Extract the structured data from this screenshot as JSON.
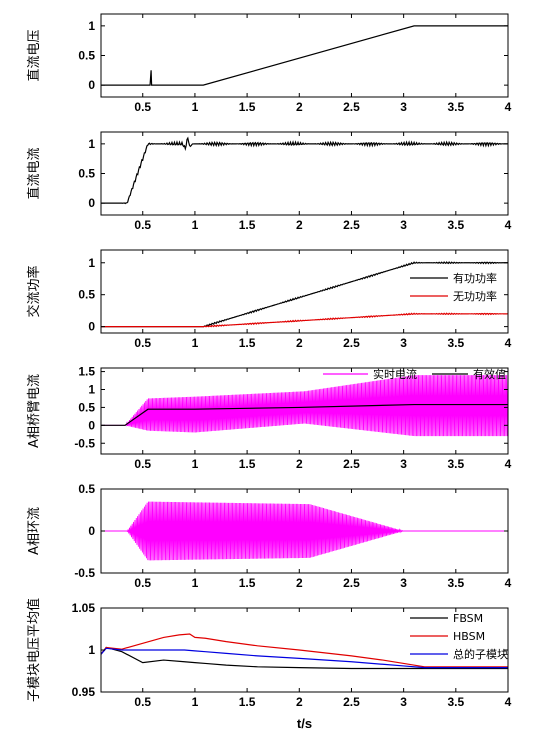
{
  "chart_data": [
    {
      "type": "line",
      "ylabel": "直流电压",
      "xlim": [
        0.1,
        4
      ],
      "ylim": [
        -0.2,
        1.2
      ],
      "xticks": [
        "0.5",
        "1",
        "1.5",
        "2",
        "2.5",
        "3",
        "3.5",
        "4"
      ],
      "yticks": [
        "0",
        "0.5",
        "1"
      ],
      "series": [
        {
          "color": "#000000",
          "x": [
            0.1,
            0.57,
            0.58,
            0.585,
            0.59,
            1.08,
            3.1,
            4.0
          ],
          "y": [
            0,
            0,
            0.25,
            0,
            0,
            0,
            1,
            1
          ]
        }
      ]
    },
    {
      "type": "line",
      "ylabel": "直流电流",
      "xlim": [
        0.1,
        4
      ],
      "ylim": [
        -0.2,
        1.2
      ],
      "xticks": [
        "0.5",
        "1",
        "1.5",
        "2",
        "2.5",
        "3",
        "3.5",
        "4"
      ],
      "yticks": [
        "0",
        "0.5",
        "1"
      ],
      "series": [
        {
          "color": "#000000",
          "x": [
            0.1,
            0.35,
            0.55,
            0.88,
            0.91,
            0.93,
            0.95,
            0.98,
            4.0
          ],
          "y": [
            0,
            0,
            1,
            1,
            0.92,
            1.12,
            0.95,
            1.0,
            1.0
          ],
          "ripple": 0.03
        }
      ]
    },
    {
      "type": "line",
      "ylabel": "交流功率",
      "xlim": [
        0.1,
        4
      ],
      "ylim": [
        -0.1,
        1.2
      ],
      "xticks": [
        "0.5",
        "1",
        "1.5",
        "2",
        "2.5",
        "3",
        "3.5",
        "4"
      ],
      "yticks": [
        "0",
        "0.5",
        "1"
      ],
      "legend": [
        "有功功率",
        "无功功率"
      ],
      "legend_position": "right",
      "series": [
        {
          "name": "有功功率",
          "color": "#000000",
          "x": [
            0.1,
            1.08,
            3.1,
            4.0
          ],
          "y": [
            0,
            0,
            1,
            1
          ],
          "ripple": 0.012
        },
        {
          "name": "无功功率",
          "color": "#e00000",
          "x": [
            0.1,
            1.08,
            3.1,
            4.0
          ],
          "y": [
            0,
            0,
            0.2,
            0.2
          ],
          "ripple": 0.01
        }
      ]
    },
    {
      "type": "line",
      "ylabel": "A相桥臂电流",
      "xlim": [
        0.1,
        4
      ],
      "ylim": [
        -0.8,
        1.6
      ],
      "xticks": [
        "0.5",
        "1",
        "1.5",
        "2",
        "2.5",
        "3",
        "3.5",
        "4"
      ],
      "yticks": [
        "-0.5",
        "0",
        "0.5",
        "1",
        "1.5"
      ],
      "legend": [
        "实时电流",
        "有效值"
      ],
      "legend_position": "top",
      "series": [
        {
          "name": "实时电流",
          "color": "#ff00ff",
          "kind": "osc",
          "x": [
            0.1,
            0.33,
            0.55,
            1.0,
            2.05,
            3.1,
            4.0
          ],
          "center": [
            0,
            0,
            0.3,
            0.3,
            0.5,
            0.55,
            0.55
          ],
          "amp": [
            0,
            0,
            0.45,
            0.5,
            0.45,
            0.85,
            0.85
          ]
        },
        {
          "name": "有效值",
          "color": "#000000",
          "x": [
            0.1,
            0.33,
            0.55,
            1.0,
            2.0,
            3.1,
            4.0
          ],
          "y": [
            0,
            0,
            0.45,
            0.45,
            0.5,
            0.58,
            0.58
          ]
        }
      ]
    },
    {
      "type": "line",
      "ylabel": "A相环流",
      "xlim": [
        0.1,
        4
      ],
      "ylim": [
        -0.5,
        0.5
      ],
      "xticks": [
        "0.5",
        "1",
        "1.5",
        "2",
        "2.5",
        "3",
        "3.5",
        "4"
      ],
      "yticks": [
        "-0.5",
        "0",
        "0.5"
      ],
      "series": [
        {
          "color": "#ff00ff",
          "kind": "osc",
          "x": [
            0.1,
            0.35,
            0.55,
            2.1,
            3.0,
            4.0
          ],
          "center": [
            0,
            0,
            0,
            0,
            0,
            0
          ],
          "amp": [
            0,
            0,
            0.35,
            0.32,
            0,
            0
          ]
        }
      ]
    },
    {
      "type": "line",
      "ylabel": "子模块电压平均值",
      "xlabel": "t/s",
      "xlim": [
        0.1,
        4
      ],
      "ylim": [
        0.95,
        1.05
      ],
      "xticks": [
        "0.5",
        "1",
        "1.5",
        "2",
        "2.5",
        "3",
        "3.5",
        "4"
      ],
      "yticks": [
        "0.95",
        "1",
        "1.05"
      ],
      "legend": [
        "FBSM",
        "HBSM",
        "总的子模块"
      ],
      "legend_position": "top-right",
      "series": [
        {
          "name": "FBSM",
          "color": "#000000",
          "x": [
            0.1,
            0.15,
            0.3,
            0.5,
            0.7,
            0.9,
            1.0,
            1.1,
            1.3,
            1.6,
            2.0,
            2.5,
            3.0,
            3.2,
            4.0
          ],
          "y": [
            0.995,
            1.003,
            0.998,
            0.985,
            0.988,
            0.986,
            0.985,
            0.984,
            0.982,
            0.98,
            0.979,
            0.978,
            0.978,
            0.978,
            0.978
          ]
        },
        {
          "name": "HBSM",
          "color": "#e00000",
          "x": [
            0.1,
            0.15,
            0.3,
            0.5,
            0.7,
            0.85,
            0.95,
            1.0,
            1.1,
            1.3,
            1.6,
            2.0,
            2.5,
            2.8,
            3.0,
            3.2,
            4.0
          ],
          "y": [
            0.995,
            1.003,
            1.001,
            1.008,
            1.015,
            1.018,
            1.019,
            1.015,
            1.014,
            1.01,
            1.005,
            1.0,
            0.993,
            0.988,
            0.984,
            0.98,
            0.98
          ]
        },
        {
          "name": "总的子模块",
          "color": "#0000e0",
          "x": [
            0.1,
            0.15,
            0.3,
            0.5,
            0.9,
            1.0,
            1.1,
            1.3,
            1.6,
            2.0,
            2.5,
            2.8,
            3.0,
            3.2,
            4.0
          ],
          "y": [
            0.995,
            1.002,
            1.0,
            1.0,
            1.0,
            0.999,
            0.998,
            0.996,
            0.993,
            0.99,
            0.986,
            0.983,
            0.981,
            0.979,
            0.979
          ]
        }
      ]
    }
  ]
}
